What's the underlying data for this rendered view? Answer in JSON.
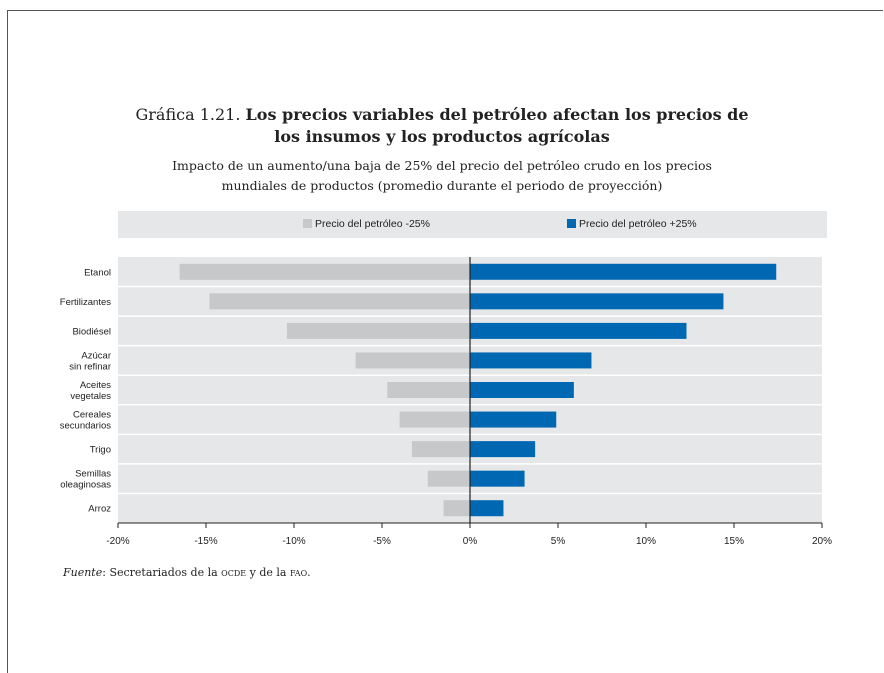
{
  "title": {
    "prefix": "Gráfica 1.21.",
    "bold_line1": "Los precios variables del petróleo afectan los precios de",
    "bold_line2": "los insumos y los productos agrícolas"
  },
  "subtitle": {
    "line1": "Impacto de un aumento/una baja de 25% del precio del petróleo crudo en los precios",
    "line2": "mundiales de productos (promedio durante el periodo de proyección)"
  },
  "source": {
    "label": "Fuente",
    "text_a": ": Secretariados de la ",
    "ocde": "ocde",
    "text_b": " y de la ",
    "fao": "fao",
    "text_c": "."
  },
  "chart_data": {
    "type": "bar",
    "orientation": "horizontal",
    "categories": [
      [
        "Etanol"
      ],
      [
        "Fertilizantes"
      ],
      [
        "Biodiésel"
      ],
      [
        "Azúcar",
        "sin refinar"
      ],
      [
        "Aceites",
        "vegetales"
      ],
      [
        "Cereales",
        "secundarios"
      ],
      [
        "Trigo"
      ],
      [
        "Semillas",
        "oleaginosas"
      ],
      [
        "Arroz"
      ]
    ],
    "series": [
      {
        "name": "Precio del petróleo  -25%",
        "color": "#c7c8ca",
        "values": [
          -16.5,
          -14.8,
          -10.4,
          -6.5,
          -4.7,
          -4.0,
          -3.3,
          -2.4,
          -1.5
        ]
      },
      {
        "name": "Precio del petróleo +25%",
        "color": "#0068b3",
        "values": [
          17.4,
          14.4,
          12.3,
          6.9,
          5.9,
          4.9,
          3.7,
          3.1,
          1.9
        ]
      }
    ],
    "xlim": [
      -20,
      20
    ],
    "xticks": [
      -20,
      -15,
      -10,
      -5,
      0,
      5,
      10,
      15,
      20
    ],
    "xtick_labels": [
      "-20%",
      "-15%",
      "-10%",
      "-5%",
      "0%",
      "5%",
      "10%",
      "15%",
      "20%"
    ],
    "legend_position": "top",
    "grid": "horizontal",
    "plot_background": "#e6e7e8"
  }
}
